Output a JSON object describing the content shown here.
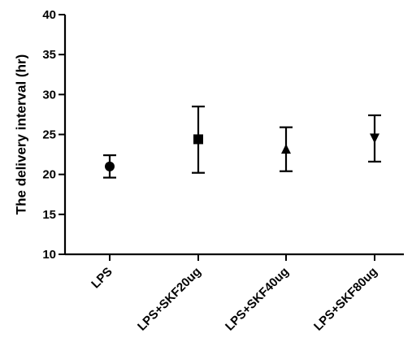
{
  "chart_data": {
    "type": "scatter",
    "title": "",
    "xlabel": "",
    "ylabel": "The delivery interval (hr)",
    "ylim": [
      10,
      40
    ],
    "yticks": [
      10,
      15,
      20,
      25,
      30,
      35,
      40
    ],
    "categories": [
      "LPS",
      "LPS+SKF20ug",
      "LPS+SKF40ug",
      "LPS+SKF80ug"
    ],
    "values": [
      21.0,
      24.4,
      23.1,
      24.6
    ],
    "error_low": [
      19.6,
      20.2,
      20.4,
      21.6
    ],
    "error_high": [
      22.4,
      28.5,
      25.9,
      27.4
    ],
    "markers": [
      "circle",
      "square",
      "triangle-up",
      "triangle-down"
    ],
    "grid": false,
    "legend": "none"
  }
}
